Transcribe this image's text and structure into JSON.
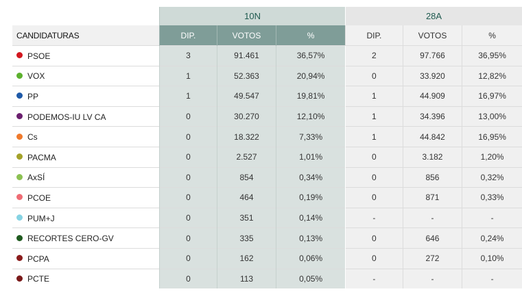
{
  "groups": {
    "g1": "10N",
    "g2": "28A"
  },
  "headers": {
    "candidaturas": "CANDIDATURAS",
    "dip": "DIP.",
    "votos": "VOTOS",
    "pct": "%"
  },
  "rows": [
    {
      "name": "PSOE",
      "color": "#d2171f",
      "dip_10n": "3",
      "votos_10n": "91.461",
      "pct_10n": "36,57%",
      "dip_28a": "2",
      "votos_28a": "97.766",
      "pct_28a": "36,95%"
    },
    {
      "name": "VOX",
      "color": "#5cb12e",
      "dip_10n": "1",
      "votos_10n": "52.363",
      "pct_10n": "20,94%",
      "dip_28a": "0",
      "votos_28a": "33.920",
      "pct_28a": "12,82%"
    },
    {
      "name": "PP",
      "color": "#1f5aa8",
      "dip_10n": "1",
      "votos_10n": "49.547",
      "pct_10n": "19,81%",
      "dip_28a": "1",
      "votos_28a": "44.909",
      "pct_28a": "16,97%"
    },
    {
      "name": "PODEMOS-IU LV CA",
      "color": "#6b1f6e",
      "dip_10n": "0",
      "votos_10n": "30.270",
      "pct_10n": "12,10%",
      "dip_28a": "1",
      "votos_28a": "34.396",
      "pct_28a": "13,00%"
    },
    {
      "name": "Cs",
      "color": "#f07a2c",
      "dip_10n": "0",
      "votos_10n": "18.322",
      "pct_10n": "7,33%",
      "dip_28a": "1",
      "votos_28a": "44.842",
      "pct_28a": "16,95%"
    },
    {
      "name": "PACMA",
      "color": "#a4a22a",
      "dip_10n": "0",
      "votos_10n": "2.527",
      "pct_10n": "1,01%",
      "dip_28a": "0",
      "votos_28a": "3.182",
      "pct_28a": "1,20%"
    },
    {
      "name": "AxSÍ",
      "color": "#8cc152",
      "dip_10n": "0",
      "votos_10n": "854",
      "pct_10n": "0,34%",
      "dip_28a": "0",
      "votos_28a": "856",
      "pct_28a": "0,32%"
    },
    {
      "name": "PCOE",
      "color": "#ef6c74",
      "dip_10n": "0",
      "votos_10n": "464",
      "pct_10n": "0,19%",
      "dip_28a": "0",
      "votos_28a": "871",
      "pct_28a": "0,33%"
    },
    {
      "name": "PUM+J",
      "color": "#86d3e3",
      "dip_10n": "0",
      "votos_10n": "351",
      "pct_10n": "0,14%",
      "dip_28a": "-",
      "votos_28a": "-",
      "pct_28a": "-"
    },
    {
      "name": "RECORTES CERO-GV",
      "color": "#1f5a1f",
      "dip_10n": "0",
      "votos_10n": "335",
      "pct_10n": "0,13%",
      "dip_28a": "0",
      "votos_28a": "646",
      "pct_28a": "0,24%"
    },
    {
      "name": "PCPA",
      "color": "#8a1c1c",
      "dip_10n": "0",
      "votos_10n": "162",
      "pct_10n": "0,06%",
      "dip_28a": "0",
      "votos_28a": "272",
      "pct_28a": "0,10%"
    },
    {
      "name": "PCTE",
      "color": "#7a1a1a",
      "dip_10n": "0",
      "votos_10n": "113",
      "pct_10n": "0,05%",
      "dip_28a": "-",
      "votos_28a": "-",
      "pct_28a": "-"
    }
  ]
}
